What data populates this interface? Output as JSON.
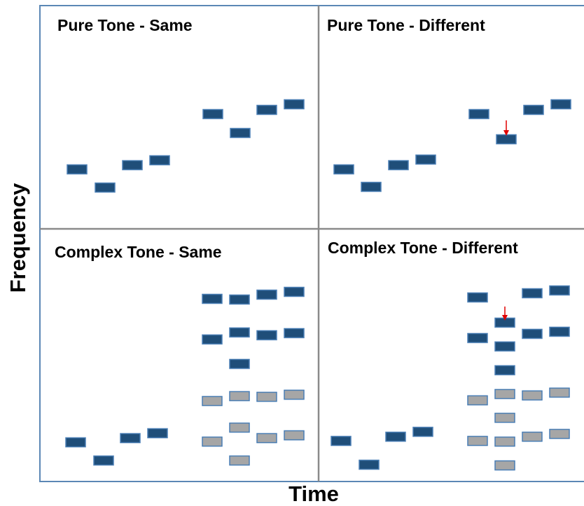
{
  "panels": [
    {
      "title": "Pure Tone - Same"
    },
    {
      "title": "Pure Tone - Different"
    },
    {
      "title": "Complex Tone - Same"
    },
    {
      "title": "Complex Tone - Different"
    }
  ],
  "axes": {
    "y_label": "Frequency",
    "x_label": "Time"
  }
}
